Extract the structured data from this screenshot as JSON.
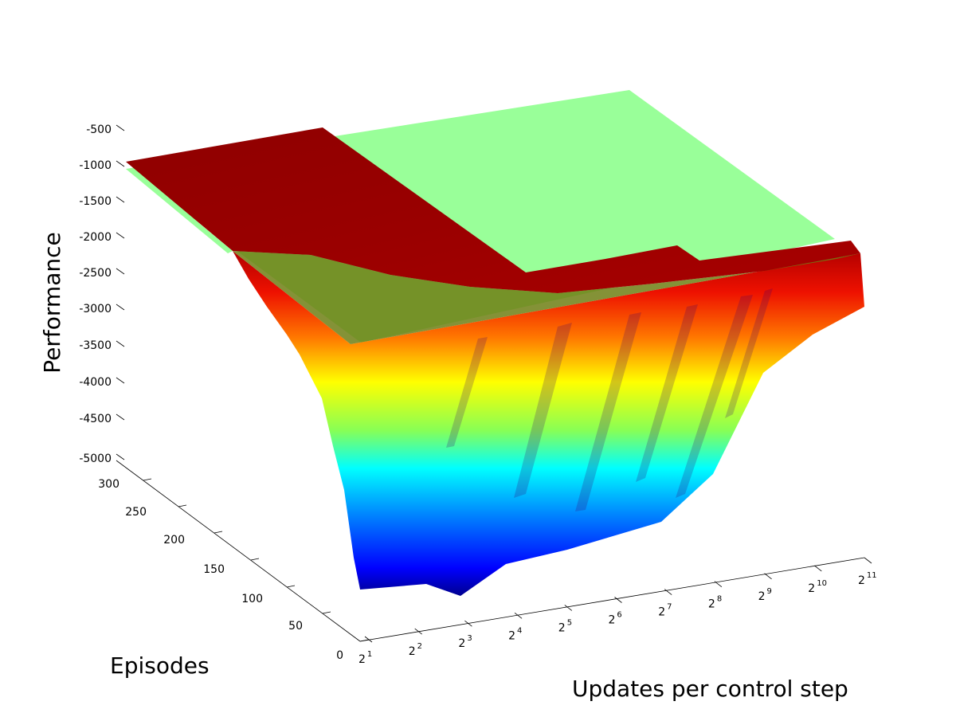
{
  "chart_data": {
    "type": "surface3d",
    "zlabel": "Performance",
    "ylabel": "Episodes",
    "xlabel": "Updates per control step",
    "z_ticks": [
      "-500",
      "-1000",
      "-1500",
      "-2000",
      "-2500",
      "-3000",
      "-3500",
      "-4000",
      "-4500",
      "-5000"
    ],
    "zlim": [
      -5000,
      -500
    ],
    "y_ticks": [
      "300",
      "250",
      "200",
      "150",
      "100",
      "50",
      "0"
    ],
    "ylim": [
      0,
      300
    ],
    "x_ticks": [
      {
        "base": "2",
        "exp": "1"
      },
      {
        "base": "2",
        "exp": "2"
      },
      {
        "base": "2",
        "exp": "3"
      },
      {
        "base": "2",
        "exp": "4"
      },
      {
        "base": "2",
        "exp": "5"
      },
      {
        "base": "2",
        "exp": "6"
      },
      {
        "base": "2",
        "exp": "7"
      },
      {
        "base": "2",
        "exp": "8"
      },
      {
        "base": "2",
        "exp": "9"
      },
      {
        "base": "2",
        "exp": "10"
      },
      {
        "base": "2",
        "exp": "11"
      }
    ],
    "x_scale": "log2",
    "grid": false,
    "colormap": "jet",
    "series": [
      {
        "kind": "surface",
        "color": "#990000",
        "colored_by": "z"
      },
      {
        "kind": "reference_plane",
        "color": "#99ff99",
        "z": -1000
      }
    ]
  }
}
